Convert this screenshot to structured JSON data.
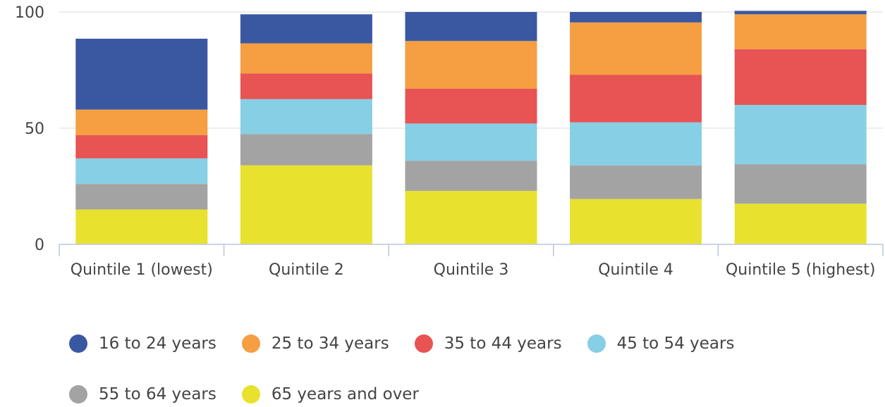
{
  "chart_data": {
    "type": "bar",
    "stacked": true,
    "categories": [
      "Quintile 1 (lowest)",
      "Quintile 2",
      "Quintile 3",
      "Quintile 4",
      "Quintile 5 (highest)"
    ],
    "series": [
      {
        "name": "65 years and over",
        "color": "#e8e22f",
        "values": [
          15,
          34,
          23,
          19.5,
          17.5
        ]
      },
      {
        "name": "55 to 64 years",
        "color": "#a3a3a3",
        "values": [
          11,
          13.5,
          13,
          14.5,
          17
        ]
      },
      {
        "name": "45 to 54 years",
        "color": "#87cfe5",
        "values": [
          11,
          15,
          16,
          18.5,
          25.5
        ]
      },
      {
        "name": "35 to 44 years",
        "color": "#e85354",
        "values": [
          10,
          11,
          15,
          20.5,
          24
        ]
      },
      {
        "name": "25 to 34 years",
        "color": "#f59e42",
        "values": [
          11,
          13,
          20.5,
          22.5,
          15
        ]
      },
      {
        "name": "16 to 24 years",
        "color": "#3a58a2",
        "values": [
          30.5,
          12.5,
          12.5,
          4.5,
          1.5
        ]
      }
    ],
    "y_ticks": [
      "0",
      "50",
      "100"
    ],
    "ylim": [
      0,
      100
    ],
    "grid": true,
    "legend_position": "bottom",
    "legend_order": [
      "16 to 24 years",
      "25 to 34 years",
      "35 to 44 years",
      "45 to 54 years",
      "55 to 64 years",
      "65 years and over"
    ]
  }
}
